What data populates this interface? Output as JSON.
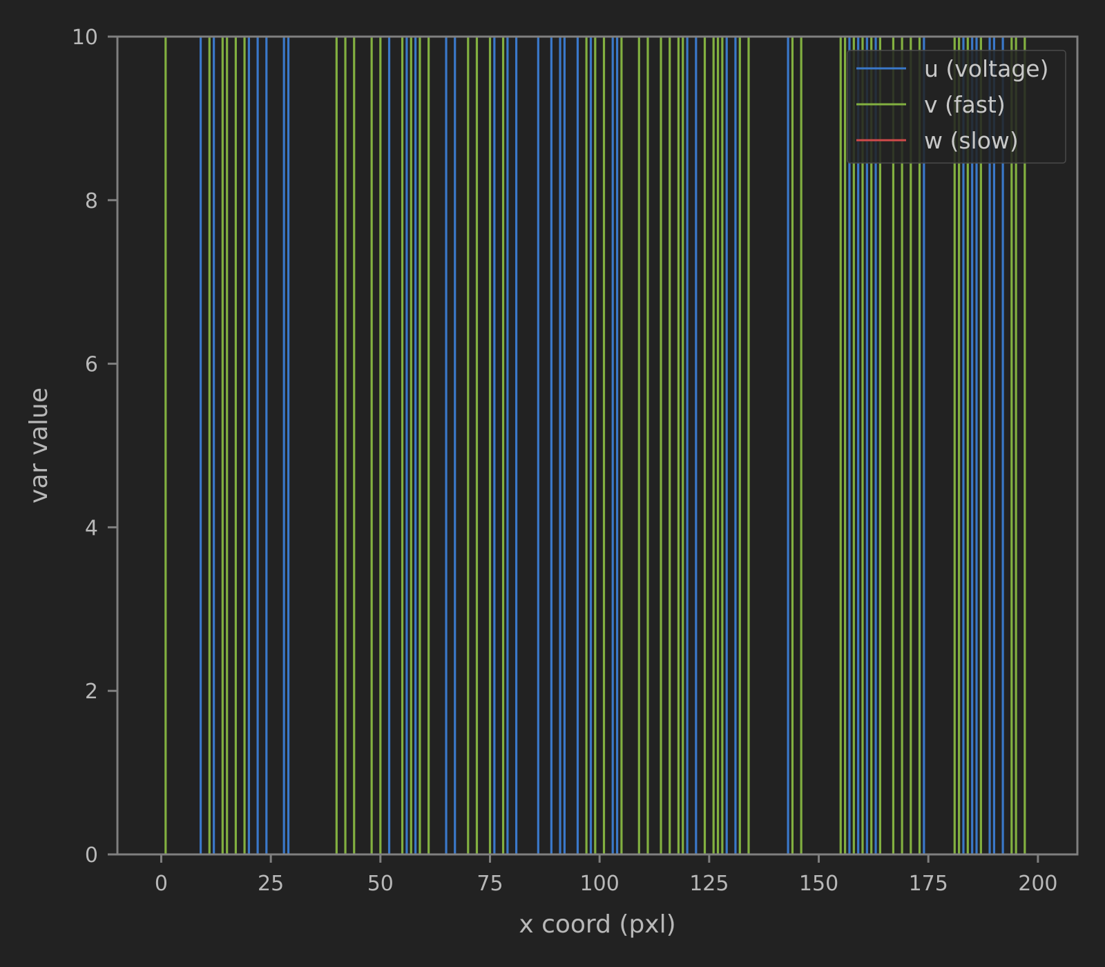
{
  "chart_data": {
    "type": "line",
    "title": "",
    "xlabel": "x coord (pxl)",
    "ylabel": "var value",
    "xlim": [
      -10,
      209
    ],
    "ylim": [
      0,
      10
    ],
    "x_ticks": [
      0,
      25,
      50,
      75,
      100,
      125,
      150,
      175,
      200
    ],
    "x_tick_labels": [
      "0",
      "25",
      "50",
      "75",
      "100",
      "125",
      "150",
      "175",
      "200"
    ],
    "y_ticks": [
      0,
      2,
      4,
      6,
      8,
      10
    ],
    "y_tick_labels": [
      "0",
      "2",
      "4",
      "6",
      "8",
      "10"
    ],
    "grid": false,
    "legend_position": "top-right",
    "colors": {
      "background": "#222222",
      "axes_frame": "#808080",
      "text": "#b8b8b8"
    },
    "series": [
      {
        "name": "u (voltage)",
        "color": "#3a78c9",
        "spike_x": [
          9,
          12,
          20,
          22,
          24,
          28,
          29,
          52,
          56,
          58,
          65,
          67,
          76,
          79,
          81,
          86,
          89,
          91,
          92,
          95,
          98,
          103,
          104,
          120,
          122,
          129,
          131,
          143,
          157,
          159,
          161,
          163,
          174,
          183,
          185,
          186,
          189,
          190,
          192
        ]
      },
      {
        "name": "v (fast)",
        "color": "#82b040",
        "spike_x": [
          1,
          11,
          14,
          15,
          17,
          19,
          40,
          42,
          44,
          48,
          50,
          55,
          57,
          59,
          61,
          70,
          72,
          75,
          78,
          97,
          99,
          101,
          105,
          109,
          111,
          114,
          116,
          118,
          119,
          124,
          126,
          127,
          128,
          132,
          134,
          144,
          146,
          155,
          156,
          158,
          160,
          162,
          164,
          167,
          169,
          171,
          173,
          181,
          182,
          184,
          187,
          194,
          195,
          197
        ]
      },
      {
        "name": "w (slow)",
        "color": "#d04a4a",
        "spike_x": []
      }
    ]
  }
}
